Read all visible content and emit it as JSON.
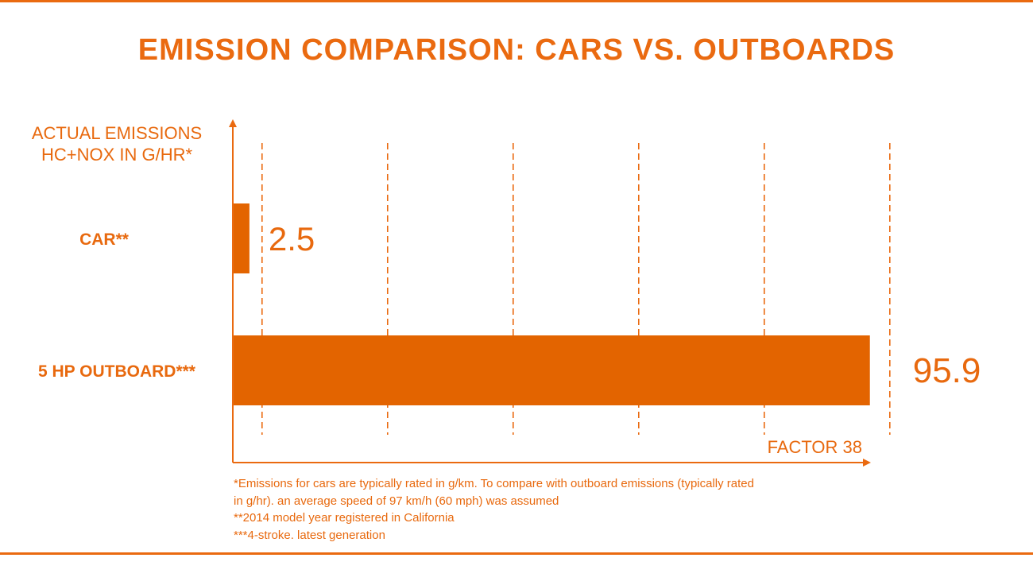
{
  "colors": {
    "accent": "#ea6a10",
    "bar": "#e36400",
    "text": "#e8690e",
    "background": "#ffffff"
  },
  "chart_data": {
    "type": "bar",
    "orientation": "horizontal",
    "title": "EMISSION COMPARISON: CARS VS. OUTBOARDS",
    "ylabel": "ACTUAL EMISSIONS HC+NOX IN G/HR*",
    "ylabel_lines": [
      "ACTUAL EMISSIONS",
      "HC+NOX IN G/HR*"
    ],
    "categories": [
      "CAR**",
      "5 HP OUTBOARD***"
    ],
    "values": [
      2.5,
      95.9
    ],
    "value_labels": [
      "2.5",
      "95.9"
    ],
    "xlim": [
      0,
      100
    ],
    "gridlines": [
      4.4,
      23.3,
      42.2,
      61.1,
      80.0,
      98.9
    ],
    "grid": true,
    "annotation": "FACTOR 38"
  },
  "footnotes": [
    "*Emissions for cars are typically rated in g/km. To compare with outboard emissions (typically rated",
    "in g/hr). an average speed of 97 km/h (60 mph) was assumed",
    "**2014 model year registered in California",
    "***4-stroke. latest generation"
  ]
}
